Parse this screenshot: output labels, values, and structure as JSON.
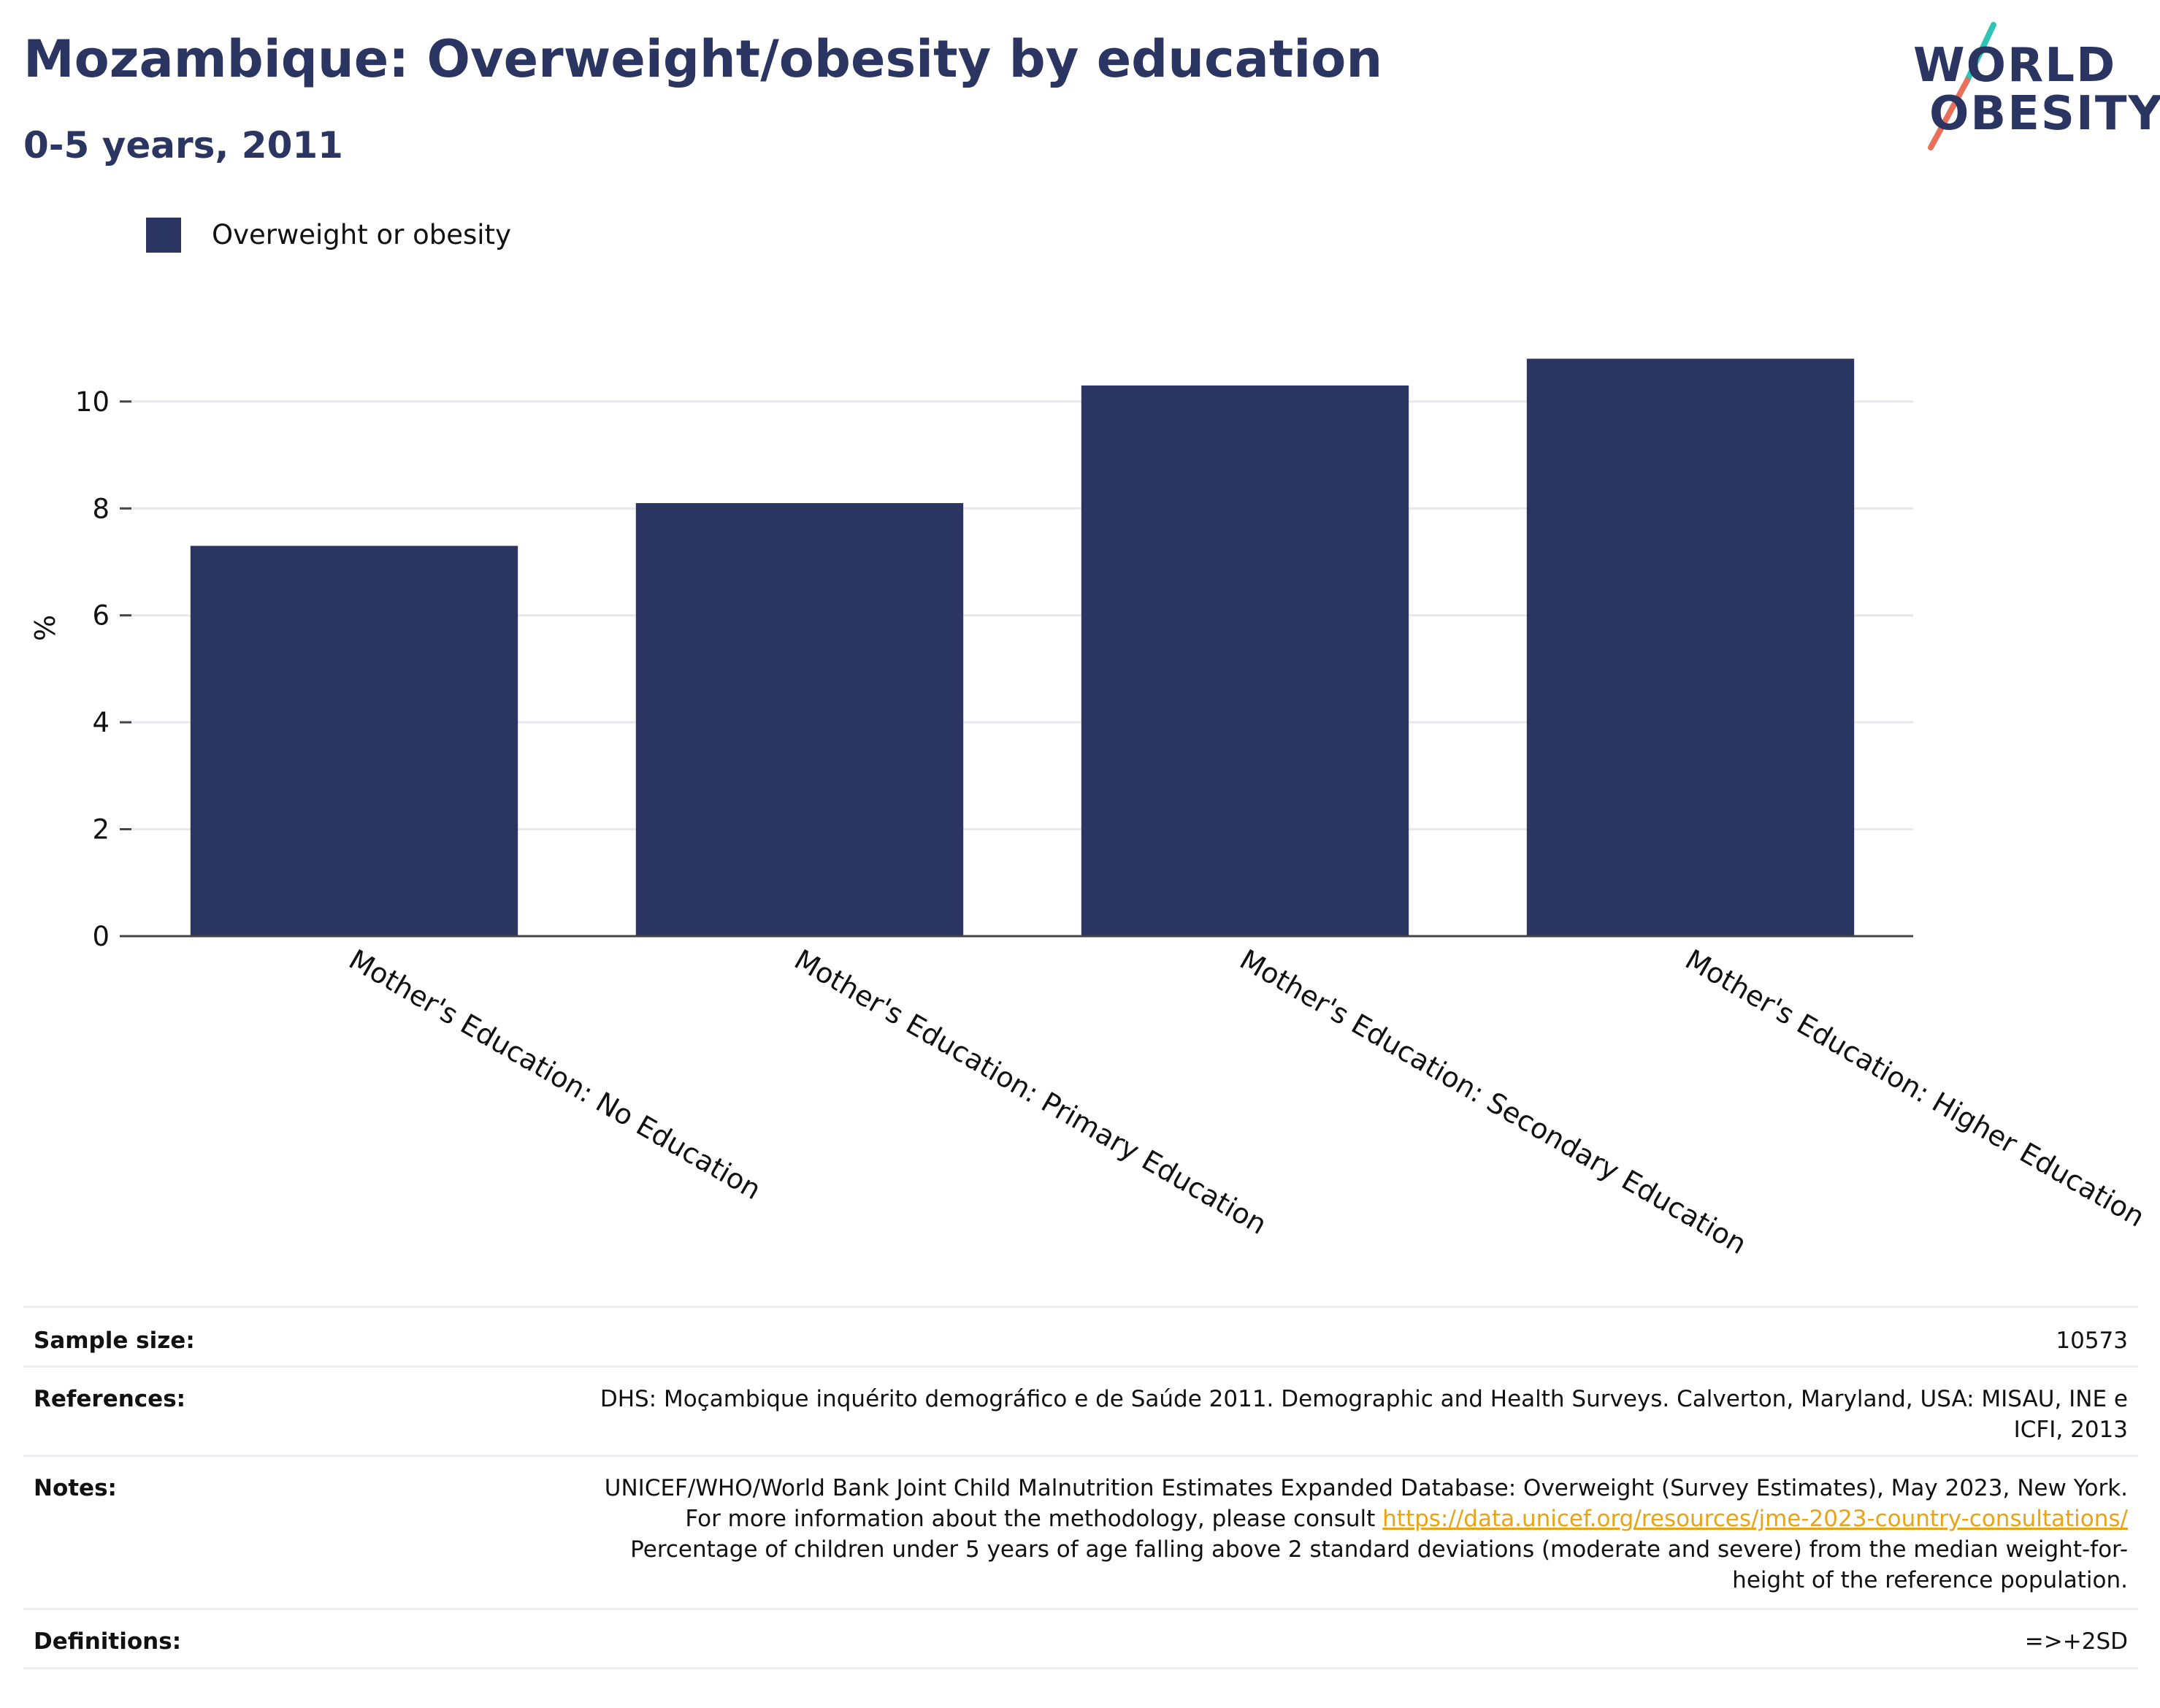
{
  "header": {
    "title": "Mozambique: Overweight/obesity by education",
    "subtitle": "0-5 years, 2011"
  },
  "logo": {
    "line1": "WORLD",
    "line2": "OBESITY",
    "accent_colors": [
      "#2ec4b6",
      "#e8705a"
    ]
  },
  "legend": {
    "label": "Overweight or obesity",
    "color": "#2b3561"
  },
  "chart_data": {
    "type": "bar",
    "categories": [
      "Mother's Education: No Education",
      "Mother's Education: Primary Education",
      "Mother's Education: Secondary Education",
      "Mother's Education: Higher Education"
    ],
    "series": [
      {
        "name": "Overweight or obesity",
        "values": [
          7.3,
          8.1,
          10.3,
          10.8
        ],
        "color": "#2b3561"
      }
    ],
    "xlabel": "",
    "ylabel": "%",
    "ylim": [
      0,
      11.5
    ],
    "yticks": [
      0,
      2,
      4,
      6,
      8,
      10
    ],
    "grid": true,
    "legend_position": "top-left"
  },
  "meta": {
    "sample_size_label": "Sample size:",
    "sample_size_value": "10573",
    "references_label": "References:",
    "references_value": "DHS: Moçambique inquérito demográfico e de Saúde 2011. Demographic and Health Surveys. Calverton, Maryland, USA: MISAU, INE e ICFI, 2013",
    "notes_label": "Notes:",
    "notes_text_1": "UNICEF/WHO/World Bank Joint Child Malnutrition Estimates Expanded Database: Overweight (Survey Estimates), May 2023, New York. For more information about the methodology, please consult",
    "notes_link": "https://data.unicef.org/resources/jme-2023-country-consultations/",
    "notes_text_2": "Percentage of children under 5 years of age falling above 2 standard deviations (moderate and severe) from the median weight-for-height of the reference population.",
    "definitions_label": "Definitions:",
    "definitions_value": "=>+2SD"
  }
}
